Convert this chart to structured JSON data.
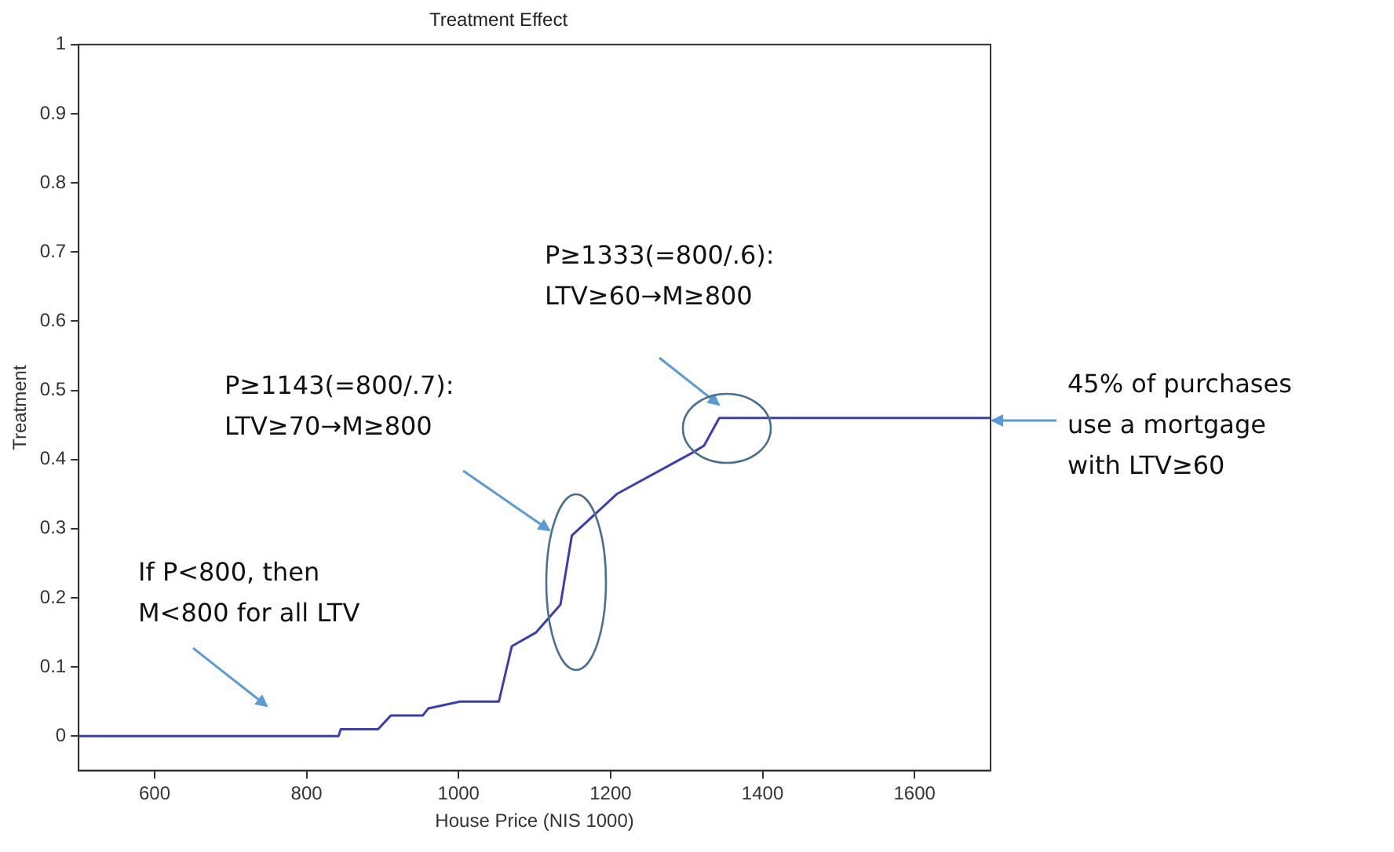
{
  "chart_data": {
    "type": "line",
    "title": "Treatment Effect",
    "xlabel": "House Price (NIS 1000)",
    "ylabel": "Treatment",
    "x": [
      500,
      842,
      845,
      894,
      911,
      953,
      960,
      1002,
      1053,
      1070,
      1102,
      1134,
      1149,
      1208,
      1308,
      1323,
      1343,
      1700
    ],
    "series": [
      {
        "color": "#3d3db3",
        "values": [
          0,
          0,
          0.01,
          0.01,
          0.03,
          0.03,
          0.04,
          0.05,
          0.05,
          0.13,
          0.15,
          0.19,
          0.29,
          0.35,
          0.41,
          0.42,
          0.46,
          0.46
        ]
      }
    ],
    "xlim": [
      500,
      1700
    ],
    "xticks": [
      600,
      800,
      1000,
      1200,
      1400,
      1600
    ],
    "ylim": [
      -0.05,
      1
    ],
    "yticks": [
      0,
      0.1,
      0.2,
      0.3,
      0.4,
      0.5,
      0.6,
      0.7,
      0.8,
      0.9,
      1
    ],
    "legend": false,
    "marker": "none",
    "line_style": "solid",
    "annotations": [
      "If P<800, then\nM<800 for all LTV",
      "P≥1143(=800/.7):\nLTV≥70→M≥800",
      "P≥1333(=800/.6):\nLTV≥60→M≥800",
      "45% of purchases\nuse a mortgage\nwith LTV≥60"
    ]
  }
}
